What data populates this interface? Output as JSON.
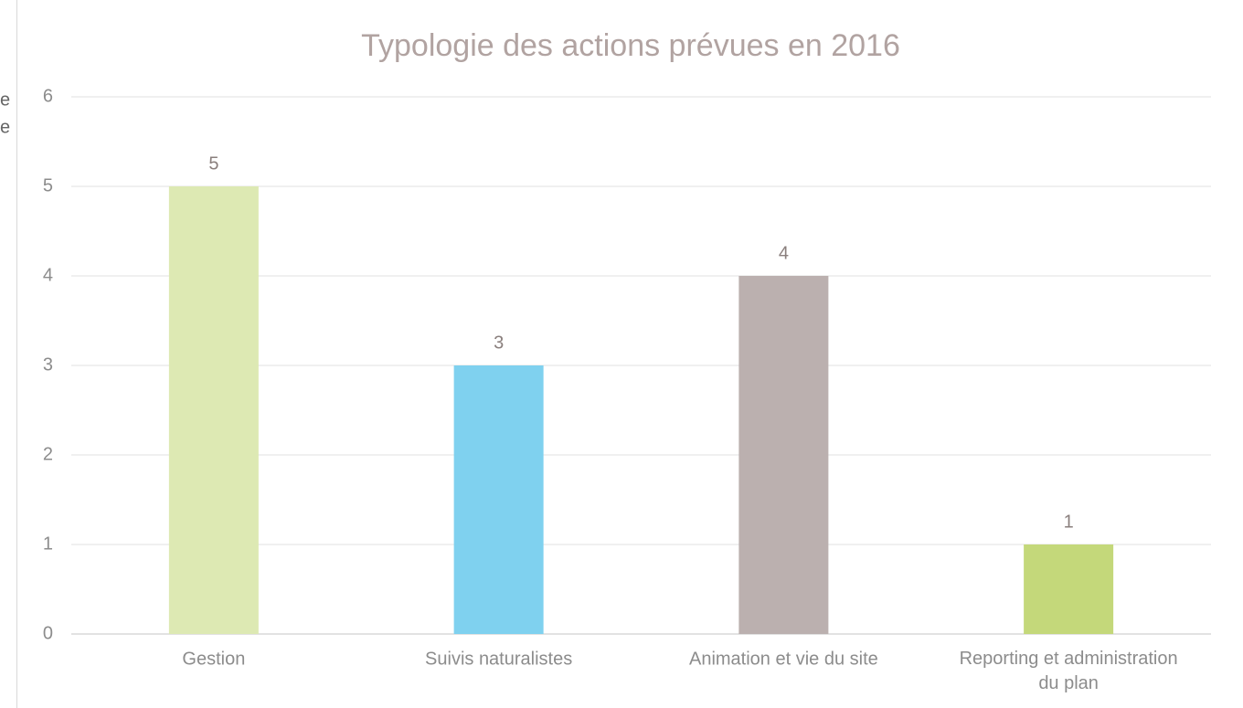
{
  "chart_data": {
    "type": "bar",
    "title": "Typologie des actions prévues en 2016",
    "categories": [
      "Gestion",
      "Suivis naturalistes",
      "Animation et vie du site",
      "Reporting et administration du plan"
    ],
    "values": [
      5,
      3,
      4,
      1
    ],
    "colors": [
      "#dde9b3",
      "#7fd1ef",
      "#bbb0af",
      "#c4d87a"
    ],
    "ylim": [
      0,
      6
    ],
    "yticks": [
      0,
      1,
      2,
      3,
      4,
      5,
      6
    ],
    "grid": true,
    "annotations": [
      "e",
      "e"
    ]
  }
}
